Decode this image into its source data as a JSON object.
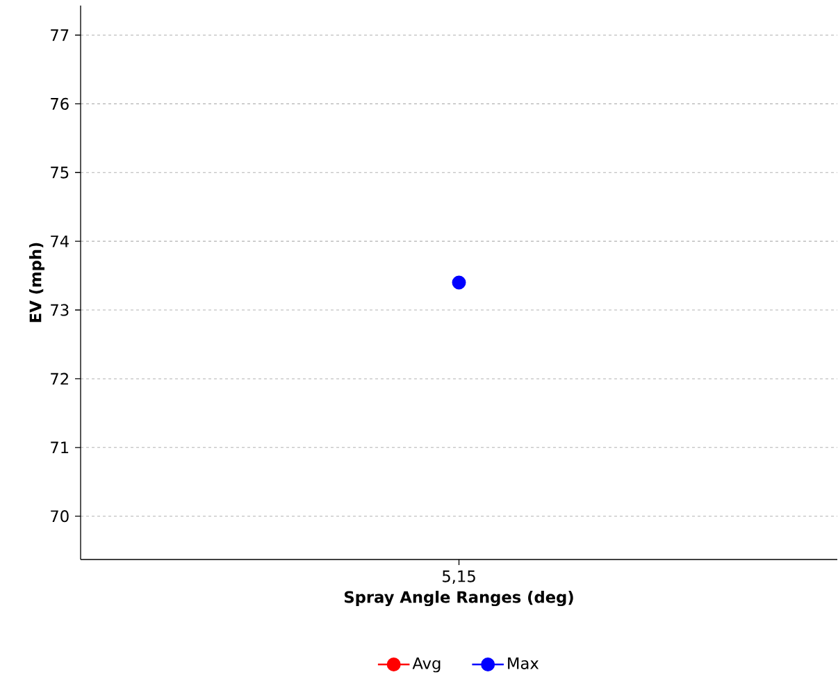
{
  "chart_data": {
    "type": "line",
    "xlabel": "Spray Angle Ranges (deg)",
    "ylabel": "EV (mph)",
    "categories": [
      "5,15"
    ],
    "series": [
      {
        "name": "Avg",
        "color": "#ff0000",
        "values": [
          null
        ]
      },
      {
        "name": "Max",
        "color": "#0000ff",
        "values": [
          73.4
        ]
      }
    ],
    "ylim": [
      69.37,
      77.43
    ],
    "yticks": [
      70,
      71,
      72,
      73,
      74,
      75,
      76,
      77
    ],
    "grid": "y",
    "legend": "bottom",
    "marker": "circle",
    "line_style": "solid"
  }
}
